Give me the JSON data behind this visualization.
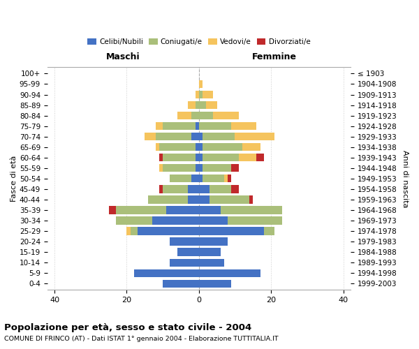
{
  "age_groups_bottom_to_top": [
    "0-4",
    "5-9",
    "10-14",
    "15-19",
    "20-24",
    "25-29",
    "30-34",
    "35-39",
    "40-44",
    "45-49",
    "50-54",
    "55-59",
    "60-64",
    "65-69",
    "70-74",
    "75-79",
    "80-84",
    "85-89",
    "90-94",
    "95-99",
    "100+"
  ],
  "birth_years_bottom_to_top": [
    "1999-2003",
    "1994-1998",
    "1989-1993",
    "1984-1988",
    "1979-1983",
    "1974-1978",
    "1969-1973",
    "1964-1968",
    "1959-1963",
    "1954-1958",
    "1949-1953",
    "1944-1948",
    "1939-1943",
    "1934-1938",
    "1929-1933",
    "1924-1928",
    "1919-1923",
    "1914-1918",
    "1909-1913",
    "1904-1908",
    "≤ 1903"
  ],
  "male_celibi": [
    10,
    18,
    8,
    6,
    8,
    17,
    13,
    9,
    3,
    3,
    2,
    1,
    1,
    1,
    2,
    1,
    0,
    0,
    0,
    0,
    0
  ],
  "male_coniugati": [
    0,
    0,
    0,
    0,
    0,
    2,
    10,
    14,
    11,
    7,
    6,
    9,
    9,
    10,
    10,
    9,
    2,
    1,
    0,
    0,
    0
  ],
  "male_vedovi": [
    0,
    0,
    0,
    0,
    0,
    1,
    0,
    0,
    0,
    0,
    0,
    1,
    0,
    1,
    3,
    2,
    4,
    2,
    1,
    0,
    0
  ],
  "male_divorziati": [
    0,
    0,
    0,
    0,
    0,
    0,
    0,
    2,
    0,
    1,
    0,
    0,
    1,
    0,
    0,
    0,
    0,
    0,
    0,
    0,
    0
  ],
  "female_nubili": [
    9,
    17,
    7,
    6,
    8,
    18,
    8,
    6,
    3,
    3,
    1,
    1,
    1,
    1,
    1,
    0,
    0,
    0,
    0,
    0,
    0
  ],
  "female_coniugate": [
    0,
    0,
    0,
    0,
    0,
    3,
    15,
    17,
    11,
    6,
    6,
    8,
    10,
    11,
    9,
    9,
    4,
    2,
    1,
    0,
    0
  ],
  "female_vedove": [
    0,
    0,
    0,
    0,
    0,
    0,
    0,
    0,
    0,
    0,
    1,
    0,
    5,
    5,
    11,
    7,
    7,
    3,
    3,
    1,
    0
  ],
  "female_divorziate": [
    0,
    0,
    0,
    0,
    0,
    0,
    0,
    0,
    1,
    2,
    1,
    2,
    2,
    0,
    0,
    0,
    0,
    0,
    0,
    0,
    0
  ],
  "colors": {
    "celibi": "#4472C4",
    "coniugati": "#AABF7A",
    "vedovi": "#F5C45E",
    "divorziati": "#C0292B"
  },
  "title": "Popolazione per età, sesso e stato civile - 2004",
  "subtitle": "COMUNE DI FRINCO (AT) - Dati ISTAT 1° gennaio 2004 - Elaborazione TUTTITALIA.IT",
  "xlim": 42,
  "maschi_label": "Maschi",
  "femmine_label": "Femmine",
  "ylabel": "Fasce di età",
  "ylabel_right": "Anni di nascita",
  "legend_labels": [
    "Celibi/Nubili",
    "Coniugati/e",
    "Vedovi/e",
    "Divorziati/e"
  ],
  "bg_color": "#FFFFFF",
  "grid_color": "#CCCCCC",
  "bar_height": 0.75
}
